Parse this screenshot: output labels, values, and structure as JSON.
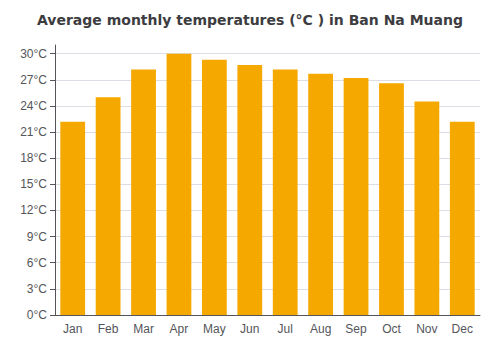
{
  "chart_data": {
    "type": "bar",
    "title": "Average monthly temperatures (°C ) in Ban Na Muang",
    "categories": [
      "Jan",
      "Feb",
      "Mar",
      "Apr",
      "May",
      "Jun",
      "Jul",
      "Aug",
      "Sep",
      "Oct",
      "Nov",
      "Dec"
    ],
    "values": [
      22.2,
      25.0,
      28.2,
      30.0,
      29.3,
      28.7,
      28.2,
      27.7,
      27.2,
      26.6,
      24.5,
      22.2
    ],
    "color": "#F5A800",
    "ylim": [
      0,
      31
    ],
    "yticks": [
      {
        "value": 0,
        "label": "0°C"
      },
      {
        "value": 3,
        "label": "3°C"
      },
      {
        "value": 6,
        "label": "6°C"
      },
      {
        "value": 9,
        "label": "9°C"
      },
      {
        "value": 12,
        "label": "12°C"
      },
      {
        "value": 15,
        "label": "15°C"
      },
      {
        "value": 18,
        "label": "18°C"
      },
      {
        "value": 21,
        "label": "21°C"
      },
      {
        "value": 24,
        "label": "24°C"
      },
      {
        "value": 27,
        "label": "27°C"
      },
      {
        "value": 30,
        "label": "30°C"
      }
    ],
    "grid": true
  }
}
